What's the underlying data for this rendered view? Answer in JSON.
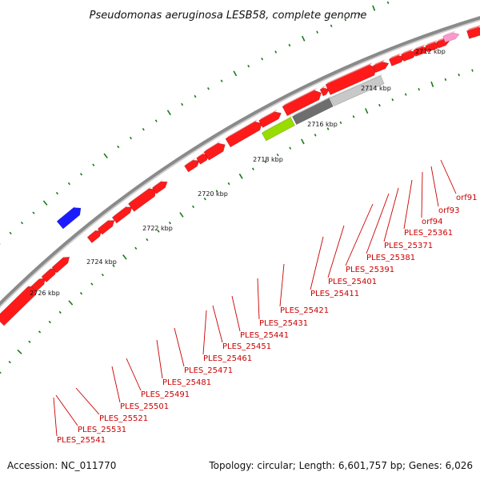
{
  "title": "Pseudomonas aeruginosa LESB58, complete genome",
  "footer": {
    "accession": "Accession: NC_011770",
    "summary": "Topology: circular; Length: 6,601,757 bp; Genes: 6,026"
  },
  "colors": {
    "backbone": "#8a8a8a",
    "gene_forward": "#ff1a1a",
    "label": "#cc0000",
    "tick": "#1a7a1a",
    "blue_feature": "#1a1aff",
    "gray_feature": "#6e6e6e",
    "light_gray_feature": "#c8c8c8",
    "lime_feature": "#99dd00",
    "pink_feature": "#ff99cc"
  },
  "scale_labels": [
    "2712 kbp",
    "2714 kbp",
    "2716 kbp",
    "2718 kbp",
    "2720 kbp",
    "2722 kbp",
    "2724 kbp",
    "2726 kbp"
  ],
  "gene_labels": [
    "orf91",
    "orf93",
    "orf94",
    "PLES_25361",
    "PLES_25371",
    "PLES_25381",
    "PLES_25391",
    "PLES_25401",
    "PLES_25411",
    "PLES_25421",
    "PLES_25431",
    "PLES_25441",
    "PLES_25451",
    "PLES_25461",
    "PLES_25471",
    "PLES_25481",
    "PLES_25491",
    "PLES_25501",
    "PLES_25521",
    "PLES_25531",
    "PLES_25541"
  ]
}
